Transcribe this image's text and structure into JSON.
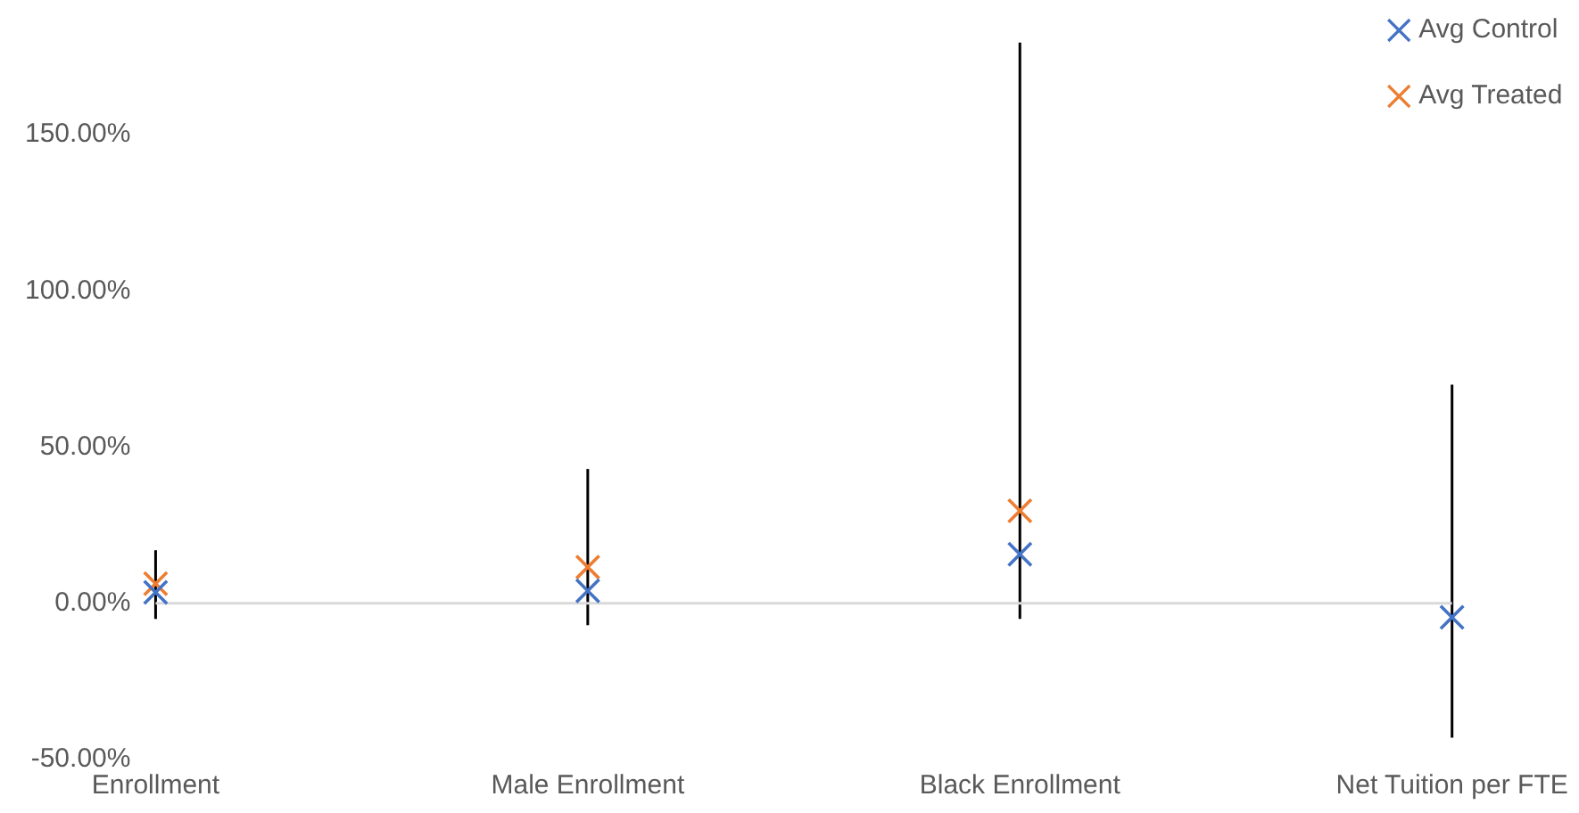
{
  "chart_data": {
    "type": "scatter",
    "categories": [
      "Enrollment",
      "Male Enrollment",
      "Black Enrollment",
      "Net Tuition per FTE"
    ],
    "series": [
      {
        "name": "Avg Control",
        "color": "#4472c4",
        "values": [
          3.5,
          4,
          15.7,
          -4.5
        ],
        "errors": [
          [
            -5,
            17
          ],
          [
            -7,
            43
          ],
          [
            -5,
            179.5
          ],
          [
            -43,
            70
          ]
        ]
      },
      {
        "name": "Avg Treated",
        "color": "#ed7d31",
        "values": [
          6.3,
          11.6,
          29.6,
          null
        ]
      }
    ],
    "ylim": [
      -50,
      180
    ],
    "yticks": [
      {
        "value": -50,
        "label": "-50.00%"
      },
      {
        "value": 0,
        "label": "0.00%"
      },
      {
        "value": 50,
        "label": "50.00%"
      },
      {
        "value": 100,
        "label": "100.00%"
      },
      {
        "value": 150,
        "label": "150.00%"
      }
    ],
    "grid": false,
    "legend": "top right",
    "marker": "cross"
  }
}
